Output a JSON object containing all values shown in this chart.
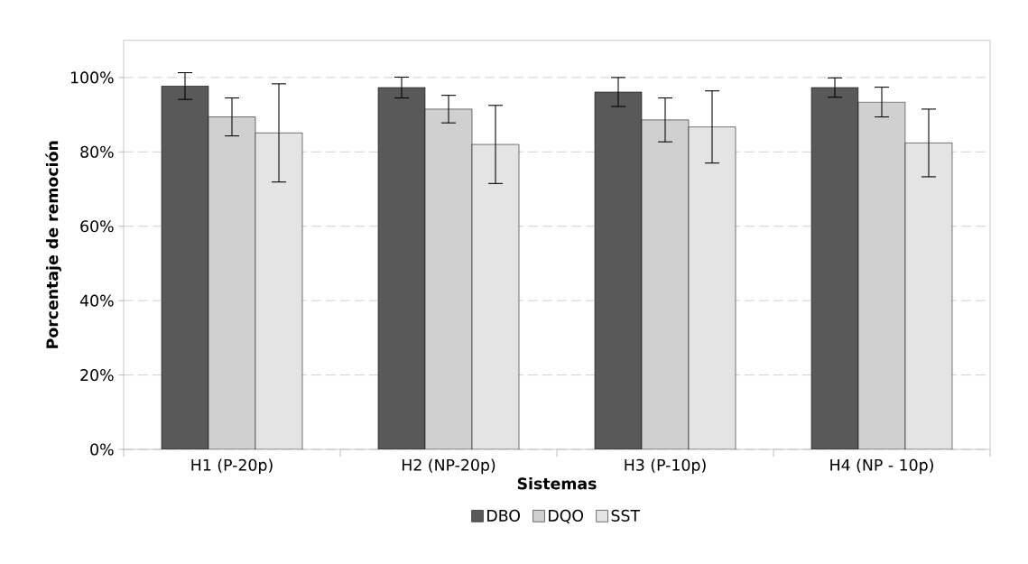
{
  "chart_data": {
    "type": "bar",
    "xlabel": "Sistemas",
    "ylabel": "Porcentaje de remoción",
    "categories": [
      "H1 (P-20p)",
      "H2 (NP-20p)",
      "H3 (P-10p)",
      "H4 (NP - 10p)"
    ],
    "series": [
      {
        "name": "DBO",
        "color": "#595959",
        "values": [
          97.7,
          97.3,
          96.1,
          97.3
        ],
        "errors": [
          3.6,
          2.8,
          3.9,
          2.6
        ]
      },
      {
        "name": "DQO",
        "color": "#d0d0d0",
        "values": [
          89.4,
          91.5,
          88.6,
          93.4
        ],
        "errors": [
          5.1,
          3.7,
          5.9,
          4.0
        ]
      },
      {
        "name": "SST",
        "color": "#e4e4e4",
        "values": [
          85.1,
          82.0,
          86.7,
          82.4
        ],
        "errors": [
          13.2,
          10.5,
          9.7,
          9.1
        ]
      }
    ],
    "ylim": [
      0,
      110
    ],
    "yticks": [
      {
        "value": 0,
        "label": "0%"
      },
      {
        "value": 20,
        "label": "20%"
      },
      {
        "value": 40,
        "label": "40%"
      },
      {
        "value": 60,
        "label": "60%"
      },
      {
        "value": 80,
        "label": "80%"
      },
      {
        "value": 100,
        "label": "100%"
      }
    ],
    "grid": "y",
    "legend": "bottom"
  }
}
